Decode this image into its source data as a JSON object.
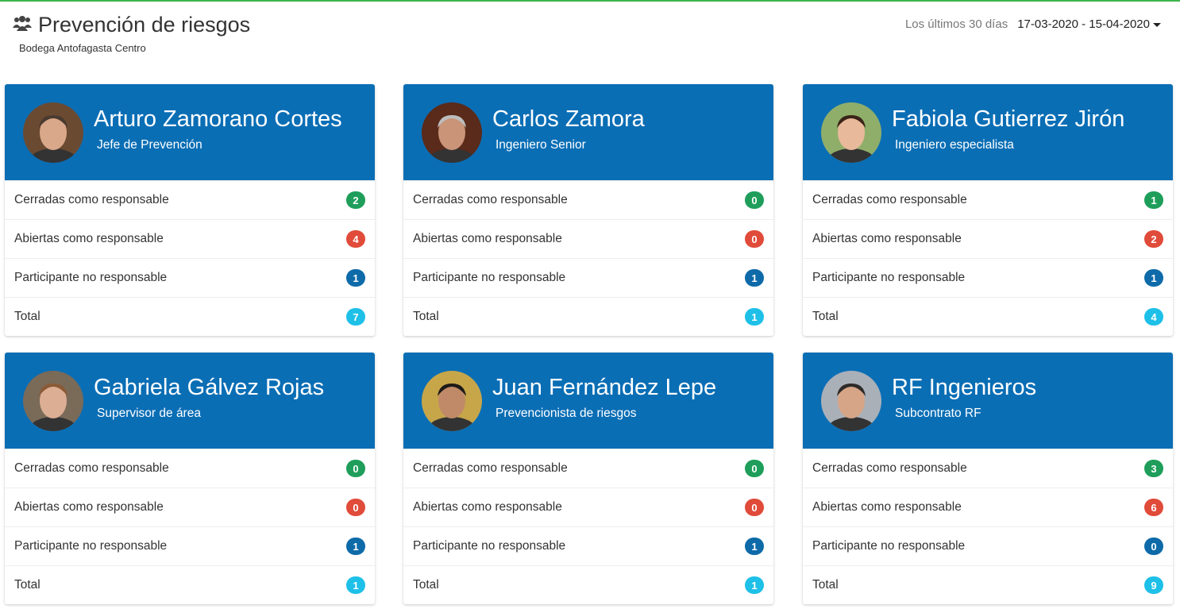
{
  "header": {
    "title": "Prevención de riesgos",
    "icon": "users-icon",
    "subtitle": "Bodega Antofagasta Centro"
  },
  "date_range": {
    "label": "Los últimos 30 días",
    "value": "17-03-2020 - 15-04-2020"
  },
  "colors": {
    "card_header": "#0a6eb5",
    "closed": "#1e9e5a",
    "open": "#e04b3a",
    "participant": "#0e6aa8",
    "total": "#1ec0e8",
    "accent_line": "#3cb54a"
  },
  "row_labels": {
    "closed": "Cerradas como responsable",
    "open": "Abiertas como responsable",
    "participant": "Participante no responsable",
    "total": "Total"
  },
  "people": [
    {
      "name": "Arturo Zamorano Cortes",
      "role": "Jefe de Prevención",
      "closed": "2",
      "open": "4",
      "participant": "1",
      "total": "7"
    },
    {
      "name": "Carlos Zamora",
      "role": "Ingeniero Senior",
      "closed": "0",
      "open": "0",
      "participant": "1",
      "total": "1"
    },
    {
      "name": "Fabiola Gutierrez Jirón",
      "role": "Ingeniero especialista",
      "closed": "1",
      "open": "2",
      "participant": "1",
      "total": "4"
    },
    {
      "name": "Gabriela Gálvez Rojas",
      "role": "Supervisor de área",
      "closed": "0",
      "open": "0",
      "participant": "1",
      "total": "1"
    },
    {
      "name": "Juan Fernández Lepe",
      "role": "Prevencionista de riesgos",
      "closed": "0",
      "open": "0",
      "participant": "1",
      "total": "1"
    },
    {
      "name": "RF Ingenieros",
      "role": "Subcontrato RF",
      "closed": "3",
      "open": "6",
      "participant": "0",
      "total": "9"
    }
  ]
}
